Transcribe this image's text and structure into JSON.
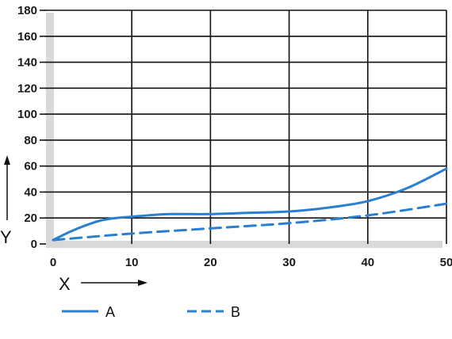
{
  "chart_data": {
    "type": "line",
    "title": "",
    "xlabel": "X",
    "ylabel": "Y",
    "xlim": [
      0,
      50
    ],
    "ylim": [
      0,
      180
    ],
    "x_ticks": [
      0,
      10,
      20,
      30,
      40,
      50
    ],
    "y_ticks": [
      0,
      20,
      40,
      60,
      80,
      100,
      120,
      140,
      160,
      180
    ],
    "grid": true,
    "legend_position": "bottom-left",
    "series": [
      {
        "name": "A",
        "style": "solid",
        "color": "#2a7fd0",
        "x": [
          0,
          2,
          4,
          6,
          8,
          10,
          12,
          15,
          20,
          25,
          30,
          35,
          40,
          45,
          50
        ],
        "y": [
          3,
          9,
          14,
          18,
          20,
          21,
          22,
          23,
          23,
          24,
          25,
          28,
          33,
          43,
          58
        ]
      },
      {
        "name": "B",
        "style": "dashed",
        "color": "#2a7fd0",
        "x": [
          0,
          10,
          20,
          30,
          40,
          50
        ],
        "y": [
          3,
          8,
          12,
          16,
          22,
          31
        ]
      }
    ]
  },
  "colors": {
    "grid": "#111111",
    "axis_band": "#d9d9d9",
    "series": "#2a7fd0"
  }
}
